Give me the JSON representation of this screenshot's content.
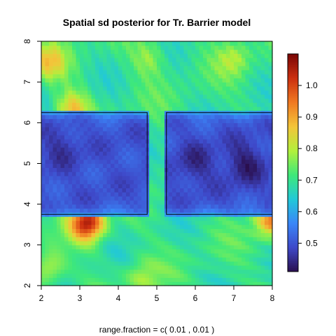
{
  "chart_data": {
    "type": "heatmap",
    "title": "Spatial sd posterior for Tr. Barrier model",
    "xlabel": "range.fraction = c( 0.01 ,  0.01 )",
    "ylabel": "",
    "xlim": [
      2,
      8
    ],
    "ylim": [
      2,
      8
    ],
    "x_ticks": [
      "2",
      "3",
      "4",
      "5",
      "6",
      "7",
      "8"
    ],
    "y_ticks": [
      "2",
      "3",
      "4",
      "5",
      "6",
      "7",
      "8"
    ],
    "colorbar": {
      "range": [
        0.41,
        1.1
      ],
      "ticks": [
        "0.5",
        "0.6",
        "0.7",
        "0.8",
        "0.9",
        "1.0"
      ],
      "colors": [
        "#2a0f4e",
        "#3e48c8",
        "#3a86f8",
        "#22c8d8",
        "#3ee87a",
        "#b2f03c",
        "#f3c53a",
        "#f07a22",
        "#cc3010",
        "#7a0605"
      ]
    },
    "barriers": [
      {
        "x": [
          2.0,
          4.75
        ],
        "y": [
          3.75,
          6.25
        ]
      },
      {
        "x": [
          5.25,
          8.0
        ],
        "y": [
          3.75,
          6.25
        ]
      }
    ],
    "field": {
      "background_value": 0.7,
      "barrier_interior_value": 0.5,
      "hotspots": [
        {
          "x": 3.2,
          "y": 3.55,
          "value": 1.05
        },
        {
          "x": 8.0,
          "y": 3.65,
          "value": 0.95
        },
        {
          "x": 2.8,
          "y": 6.35,
          "value": 0.87
        },
        {
          "x": 2.2,
          "y": 7.5,
          "value": 0.85
        },
        {
          "x": 2.2,
          "y": 2.4,
          "value": 0.82
        },
        {
          "x": 4.8,
          "y": 7.6,
          "value": 0.78
        },
        {
          "x": 7.0,
          "y": 7.6,
          "value": 0.78
        },
        {
          "x": 4.6,
          "y": 2.2,
          "value": 0.78
        }
      ],
      "lowspots": [
        {
          "x": 7.3,
          "y": 5.0,
          "value": 0.43
        },
        {
          "x": 2.5,
          "y": 5.4,
          "value": 0.46
        },
        {
          "x": 6.0,
          "y": 5.0,
          "value": 0.45
        }
      ]
    }
  }
}
